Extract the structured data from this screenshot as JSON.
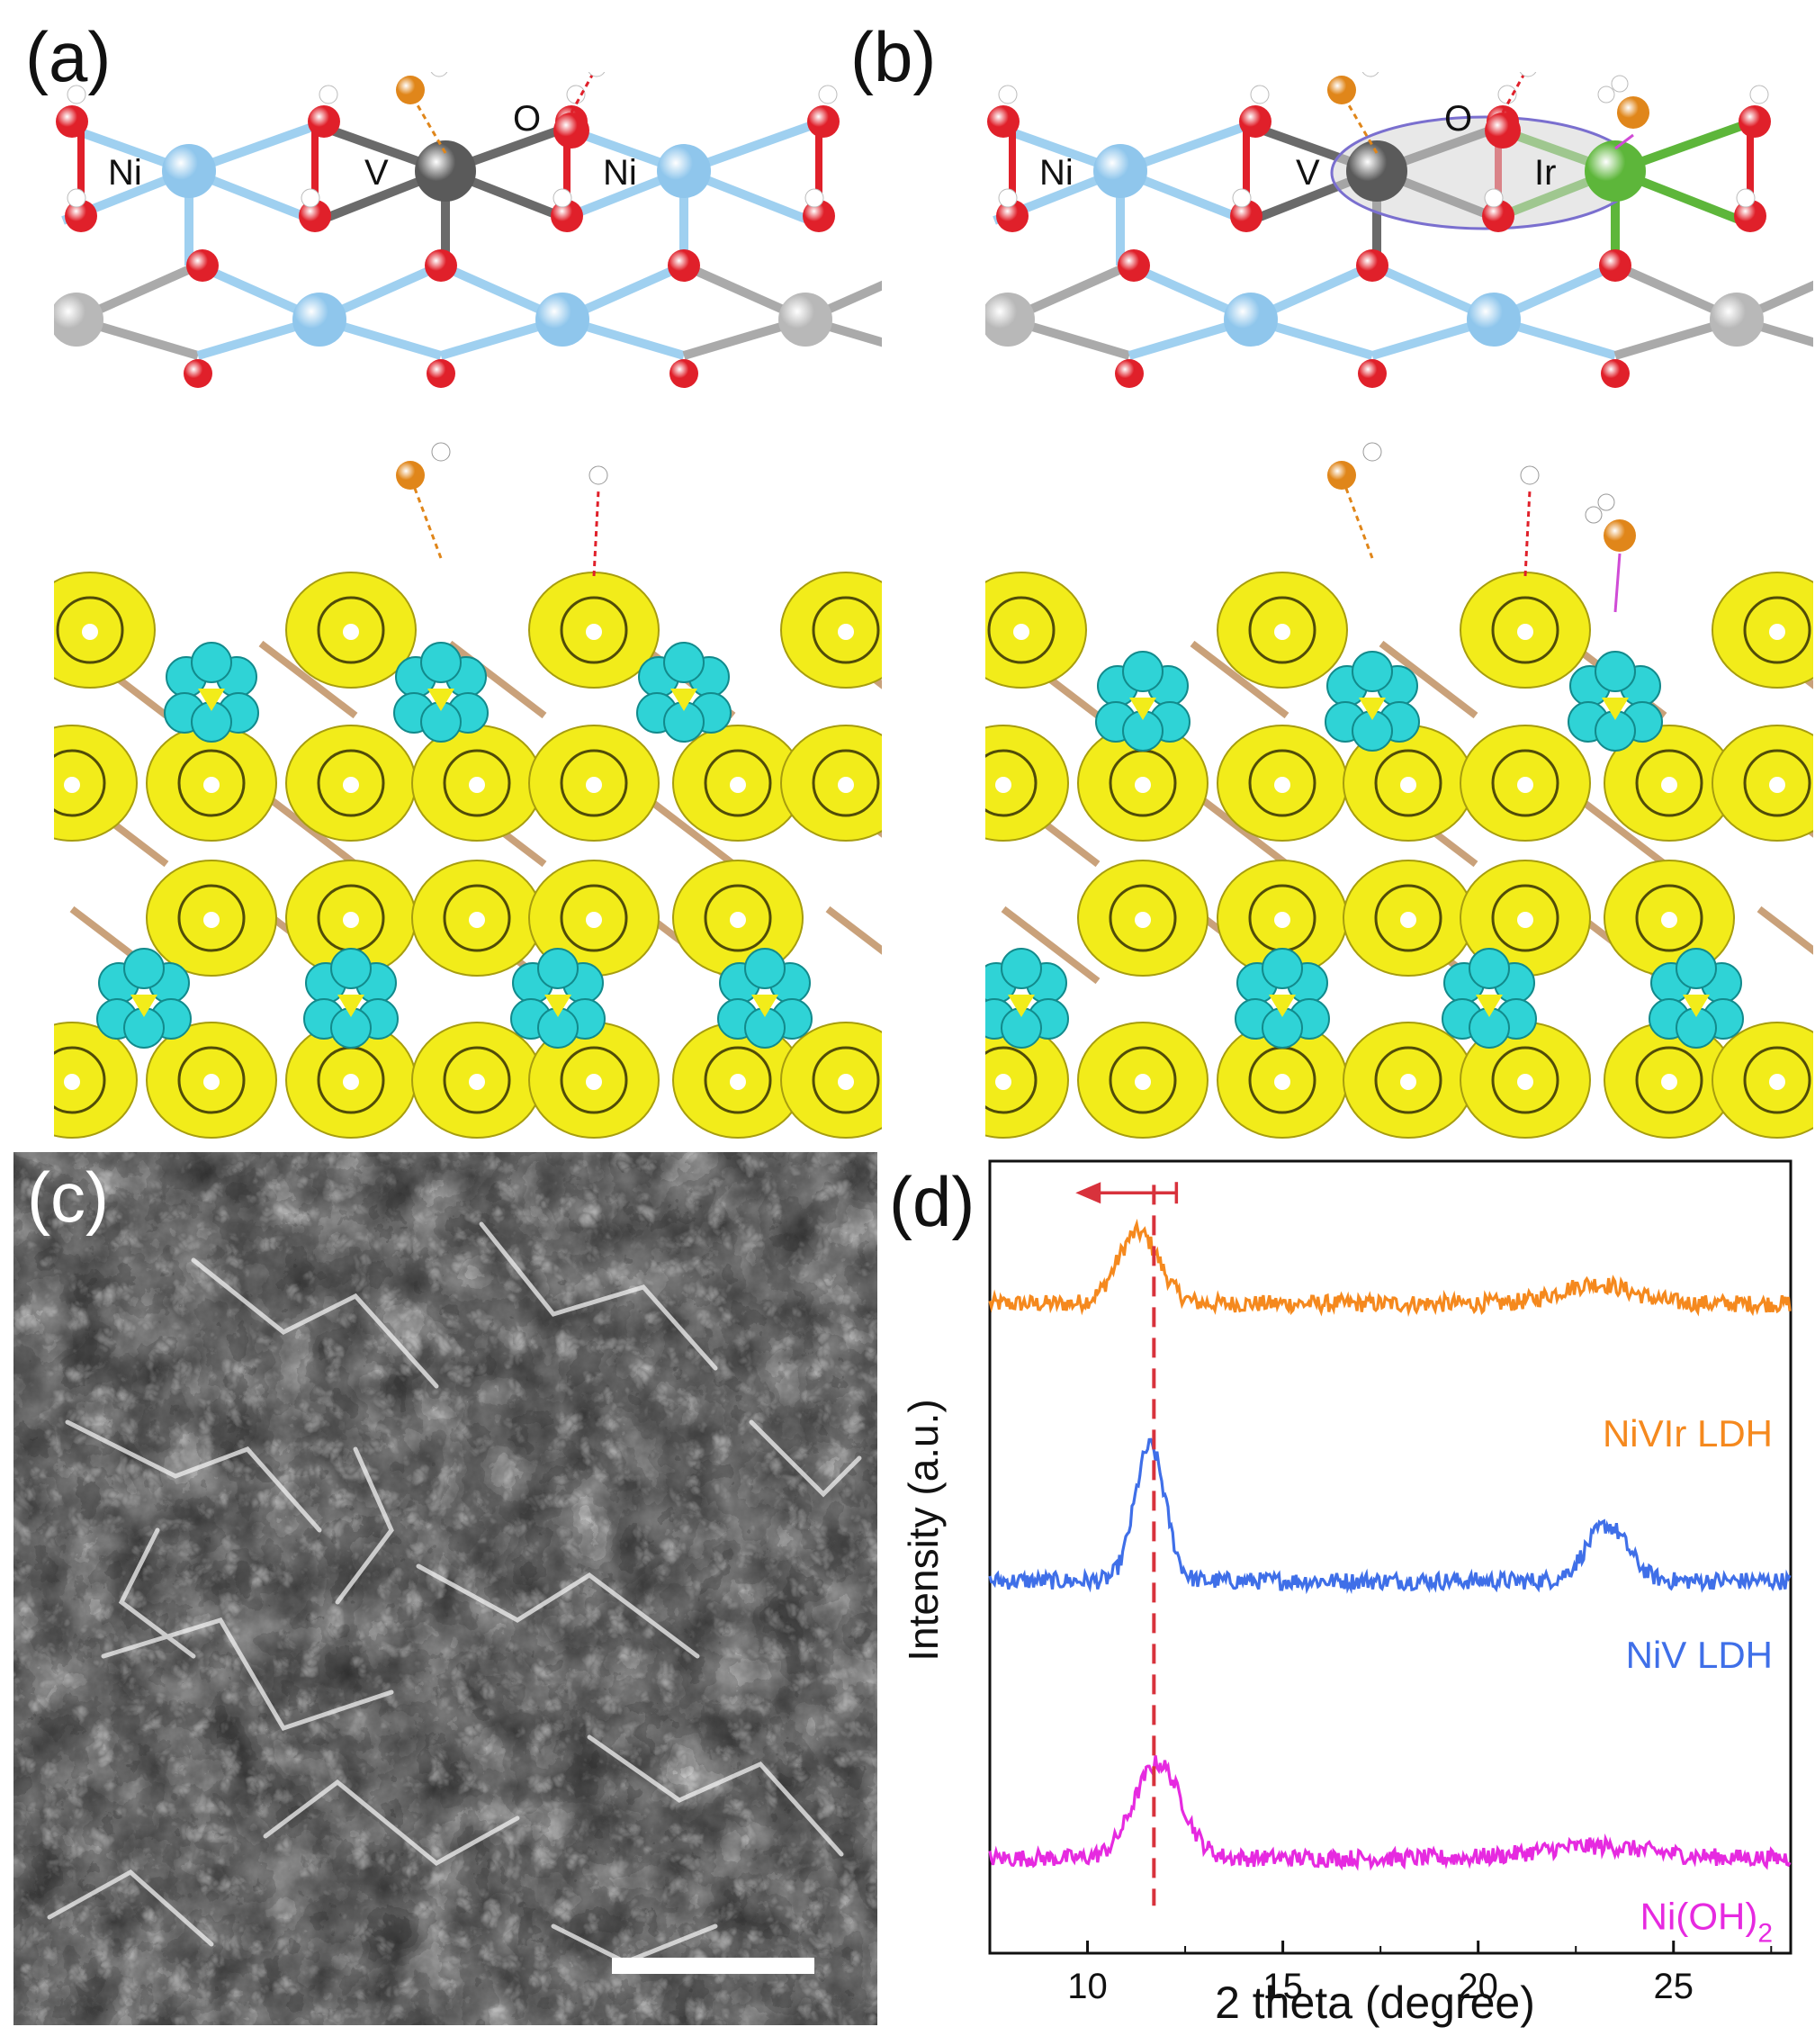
{
  "panels": {
    "a": {
      "label": "(a)",
      "atom_labels": [
        "Ni",
        "V",
        "O",
        "Ni"
      ]
    },
    "b": {
      "label": "(b)",
      "atom_labels": [
        "Ni",
        "V",
        "O",
        "Ir"
      ]
    },
    "c": {
      "label": "(c)"
    },
    "d": {
      "label": "(d)"
    }
  },
  "colors": {
    "oxygen": "#e0202a",
    "nickel": "#8fc6ec",
    "vanadium": "#5a5a5a",
    "iridium": "#5db63a",
    "hydrogen": "#ffffff",
    "adsorbate_o": "#e0861a",
    "isosurface_yellow": "#f2ec1a",
    "isosurface_cyan": "#2fd3d6",
    "NiVIr": "#f5891e",
    "NiV": "#3f6fe8",
    "NiOH2": "#e62ae0"
  },
  "chart_data": {
    "type": "line",
    "xlabel": "2 theta (degree)",
    "ylabel": "Intensity (a.u.)",
    "xlim": [
      7.5,
      28
    ],
    "x_ticks": [
      10,
      15,
      20,
      25
    ],
    "grid": false,
    "reference_line_x": 11.7,
    "arrow_direction": "left",
    "series": [
      {
        "name": "NiVIr LDH",
        "color": "#f5891e",
        "baseline": 0.82,
        "peaks": [
          {
            "x": 11.3,
            "height": 0.09,
            "width": 0.75
          },
          {
            "x": 23.0,
            "height": 0.025,
            "width": 1.3
          }
        ]
      },
      {
        "name": "NiV LDH",
        "color": "#3f6fe8",
        "baseline": 0.47,
        "peaks": [
          {
            "x": 11.6,
            "height": 0.17,
            "width": 0.55
          },
          {
            "x": 23.3,
            "height": 0.07,
            "width": 0.75
          }
        ]
      },
      {
        "name": "Ni(OH)2",
        "color": "#e62ae0",
        "baseline": 0.12,
        "peaks": [
          {
            "x": 11.8,
            "height": 0.12,
            "width": 0.85
          },
          {
            "x": 23.0,
            "height": 0.015,
            "width": 2.0
          }
        ]
      }
    ],
    "legend_labels": [
      {
        "text": "NiVIr LDH"
      },
      {
        "text": "NiV LDH"
      },
      {
        "text": "Ni(OH)",
        "sub": "2"
      }
    ]
  }
}
